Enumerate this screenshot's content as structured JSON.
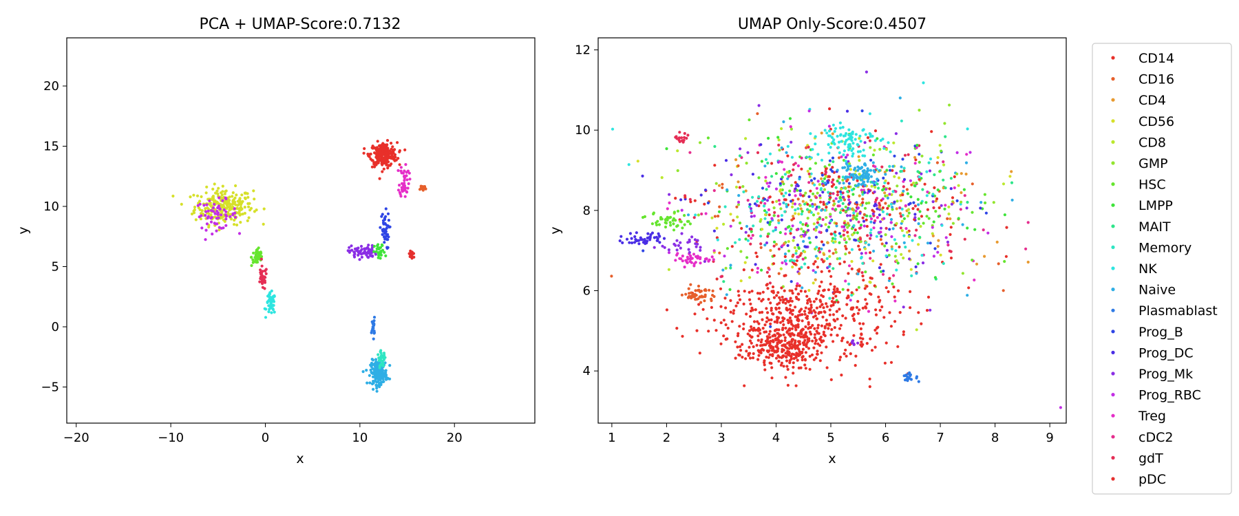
{
  "chart_data": [
    {
      "type": "scatter",
      "title": "PCA + UMAP-Score:0.7132",
      "xlabel": "x",
      "ylabel": "y",
      "xlim": [
        -21,
        28.5
      ],
      "ylim": [
        -8,
        24
      ],
      "xticks": [
        -20,
        -10,
        0,
        10,
        20
      ],
      "yticks": [
        -5,
        0,
        5,
        10,
        15,
        20
      ],
      "grid": false,
      "clusters": [
        {
          "series": "CD56",
          "cx": -4.4,
          "cy": 10.0,
          "rx": 2.8,
          "ry": 1.35,
          "n": 260
        },
        {
          "series": "Prog_RBC",
          "cx": -5.2,
          "cy": 9.3,
          "rx": 2.0,
          "ry": 1.1,
          "n": 60
        },
        {
          "series": "HSC",
          "cx": -0.8,
          "cy": 5.8,
          "rx": 0.6,
          "ry": 0.7,
          "n": 45
        },
        {
          "series": "gdT",
          "cx": -0.3,
          "cy": 4.0,
          "rx": 0.45,
          "ry": 0.9,
          "n": 30
        },
        {
          "series": "NK",
          "cx": 0.6,
          "cy": 1.9,
          "rx": 0.45,
          "ry": 0.8,
          "n": 50
        },
        {
          "series": "CD14",
          "cx": 12.5,
          "cy": 14.3,
          "rx": 1.3,
          "ry": 0.9,
          "n": 240
        },
        {
          "series": "Treg",
          "cx": 14.7,
          "cy": 12.2,
          "rx": 0.45,
          "ry": 1.3,
          "n": 45
        },
        {
          "series": "CD16",
          "cx": 16.6,
          "cy": 11.5,
          "rx": 0.45,
          "ry": 0.25,
          "n": 15
        },
        {
          "series": "Prog_B",
          "cx": 12.6,
          "cy": 8.0,
          "rx": 0.45,
          "ry": 1.4,
          "n": 45
        },
        {
          "series": "Prog_Mk",
          "cx": 10.3,
          "cy": 6.2,
          "rx": 1.3,
          "ry": 0.5,
          "n": 70
        },
        {
          "series": "LMPP",
          "cx": 12.1,
          "cy": 6.2,
          "rx": 0.5,
          "ry": 0.6,
          "n": 30
        },
        {
          "series": "pDC",
          "cx": 15.5,
          "cy": 6.0,
          "rx": 0.35,
          "ry": 0.35,
          "n": 20
        },
        {
          "series": "Plasmablast",
          "cx": 11.4,
          "cy": 0.0,
          "rx": 0.15,
          "ry": 0.7,
          "n": 18
        },
        {
          "series": "Naive",
          "cx": 12.0,
          "cy": -3.8,
          "rx": 0.8,
          "ry": 0.9,
          "n": 170
        },
        {
          "series": "Memory",
          "cx": 12.3,
          "cy": -2.7,
          "rx": 0.4,
          "ry": 0.6,
          "n": 30
        }
      ]
    },
    {
      "type": "scatter",
      "title": "UMAP Only-Score:0.4507",
      "xlabel": "x",
      "ylabel": "y",
      "xlim": [
        0.75,
        9.3
      ],
      "ylim": [
        2.7,
        12.3
      ],
      "xticks": [
        1,
        2,
        3,
        4,
        5,
        6,
        7,
        8,
        9
      ],
      "yticks": [
        4,
        6,
        8,
        10,
        12
      ],
      "grid": false,
      "clusters": [
        {
          "series": "mixed",
          "cx": 5.2,
          "cy": 8.0,
          "rx": 2.25,
          "ry": 1.75,
          "n": 1300
        },
        {
          "series": "NK",
          "cx": 5.3,
          "cy": 9.8,
          "rx": 0.45,
          "ry": 0.4,
          "n": 80
        },
        {
          "series": "Naive",
          "cx": 5.5,
          "cy": 8.9,
          "rx": 0.35,
          "ry": 0.3,
          "n": 70
        },
        {
          "series": "CD14",
          "cx": 4.5,
          "cy": 5.3,
          "rx": 1.5,
          "ry": 1.1,
          "n": 520
        },
        {
          "series": "CD14",
          "cx": 4.1,
          "cy": 4.6,
          "rx": 0.6,
          "ry": 0.45,
          "n": 200
        },
        {
          "series": "CD16",
          "cx": 2.6,
          "cy": 5.9,
          "rx": 0.25,
          "ry": 0.2,
          "n": 45
        },
        {
          "series": "Treg",
          "cx": 2.5,
          "cy": 6.8,
          "rx": 0.35,
          "ry": 0.15,
          "n": 40
        },
        {
          "series": "Prog_DC",
          "cx": 1.6,
          "cy": 7.3,
          "rx": 0.35,
          "ry": 0.15,
          "n": 45
        },
        {
          "series": "Prog_Mk",
          "cx": 2.3,
          "cy": 7.15,
          "rx": 0.35,
          "ry": 0.2,
          "n": 25
        },
        {
          "series": "HSC",
          "cx": 2.05,
          "cy": 7.75,
          "rx": 0.35,
          "ry": 0.2,
          "n": 40
        },
        {
          "series": "gdT",
          "cx": 2.3,
          "cy": 9.8,
          "rx": 0.15,
          "ry": 0.12,
          "n": 18
        },
        {
          "series": "Plasmablast",
          "cx": 6.45,
          "cy": 3.85,
          "rx": 0.12,
          "ry": 0.12,
          "n": 18
        },
        {
          "series": "Prog_Mk",
          "cx": 5.4,
          "cy": 4.7,
          "rx": 0.12,
          "ry": 0.05,
          "n": 6
        },
        {
          "series": "Prog_RBC",
          "cx": 9.2,
          "cy": 3.1,
          "rx": 0.02,
          "ry": 0.02,
          "n": 1
        }
      ]
    }
  ],
  "legend": {
    "placement": "right",
    "items": [
      {
        "label": "CD14",
        "color": "#e8302a"
      },
      {
        "label": "CD16",
        "color": "#e65f2b"
      },
      {
        "label": "CD4",
        "color": "#e89a30"
      },
      {
        "label": "CD56",
        "color": "#d6e02a"
      },
      {
        "label": "CD8",
        "color": "#bbe82e"
      },
      {
        "label": "GMP",
        "color": "#93e52f"
      },
      {
        "label": "HSC",
        "color": "#66e52f"
      },
      {
        "label": "LMPP",
        "color": "#3fe33a"
      },
      {
        "label": "MAIT",
        "color": "#2ee58a"
      },
      {
        "label": "Memory",
        "color": "#2ee5c2"
      },
      {
        "label": "NK",
        "color": "#2ee5e0"
      },
      {
        "label": "Naive",
        "color": "#2eaee5"
      },
      {
        "label": "Plasmablast",
        "color": "#2e7ae5"
      },
      {
        "label": "Prog_B",
        "color": "#2e45e5"
      },
      {
        "label": "Prog_DC",
        "color": "#4a2ee5"
      },
      {
        "label": "Prog_Mk",
        "color": "#8a2ee5"
      },
      {
        "label": "Prog_RBC",
        "color": "#c22ee5"
      },
      {
        "label": "Treg",
        "color": "#e52ec8"
      },
      {
        "label": "cDC2",
        "color": "#e52e8e"
      },
      {
        "label": "gdT",
        "color": "#e52e55"
      },
      {
        "label": "pDC",
        "color": "#e5302e"
      }
    ]
  }
}
